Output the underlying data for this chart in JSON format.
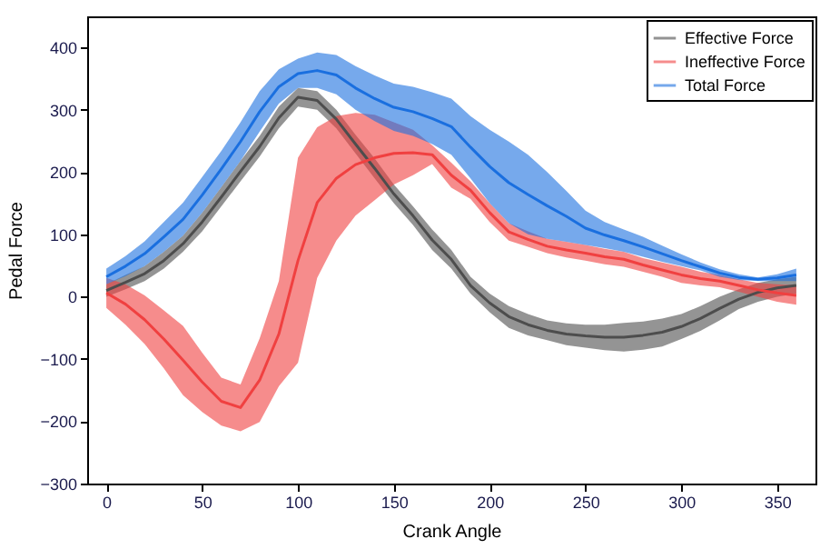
{
  "chart_data": {
    "type": "line",
    "xlabel": "Crank Angle",
    "ylabel": "Pedal Force",
    "x": [
      0,
      10,
      20,
      30,
      40,
      50,
      60,
      70,
      80,
      90,
      100,
      110,
      120,
      130,
      140,
      150,
      160,
      170,
      180,
      190,
      200,
      210,
      220,
      230,
      240,
      250,
      260,
      270,
      280,
      290,
      300,
      310,
      320,
      330,
      340,
      350,
      360
    ],
    "series": [
      {
        "name": "Effective Force",
        "color": "#4d4d4d",
        "values": [
          10,
          23,
          37,
          58,
          85,
          120,
          160,
          201,
          241,
          287,
          320,
          315,
          285,
          245,
          206,
          165,
          130,
          91,
          60,
          18,
          -10,
          -32,
          -45,
          -54,
          -60,
          -63,
          -65,
          -65,
          -62,
          -57,
          -48,
          -35,
          -19,
          -4,
          7,
          14,
          18
        ],
        "lower": [
          0,
          12,
          25,
          45,
          72,
          105,
          145,
          185,
          225,
          270,
          305,
          300,
          270,
          230,
          190,
          150,
          115,
          75,
          45,
          5,
          -25,
          -50,
          -62,
          -70,
          -78,
          -82,
          -86,
          -88,
          -85,
          -80,
          -68,
          -55,
          -38,
          -20,
          -8,
          0,
          5
        ],
        "upper": [
          20,
          35,
          49,
          72,
          98,
          135,
          176,
          218,
          258,
          305,
          335,
          330,
          300,
          260,
          222,
          180,
          145,
          108,
          75,
          32,
          5,
          -15,
          -28,
          -38,
          -43,
          -45,
          -45,
          -42,
          -40,
          -35,
          -28,
          -15,
          0,
          12,
          22,
          28,
          32
        ]
      },
      {
        "name": "Ineffective Force",
        "color": "#f04040",
        "values": [
          6,
          -12,
          -37,
          -68,
          -102,
          -137,
          -168,
          -178,
          -134,
          -60,
          58,
          151,
          190,
          212,
          223,
          230,
          231,
          228,
          195,
          171,
          135,
          104,
          92,
          81,
          75,
          70,
          64,
          60,
          51,
          43,
          35,
          29,
          25,
          18,
          11,
          6,
          2
        ],
        "lower": [
          -18,
          -45,
          -76,
          -115,
          -158,
          -185,
          -207,
          -216,
          -201,
          -144,
          -106,
          30,
          90,
          130,
          155,
          180,
          195,
          213,
          175,
          157,
          120,
          90,
          80,
          70,
          63,
          58,
          52,
          48,
          40,
          32,
          22,
          18,
          15,
          8,
          0,
          -8,
          -13
        ],
        "upper": [
          30,
          20,
          2,
          -22,
          -47,
          -90,
          -130,
          -141,
          -67,
          25,
          223,
          272,
          290,
          295,
          292,
          280,
          268,
          243,
          215,
          185,
          150,
          118,
          105,
          93,
          88,
          83,
          77,
          72,
          62,
          55,
          48,
          40,
          35,
          28,
          22,
          20,
          18
        ]
      },
      {
        "name": "Total Force",
        "color": "#1a6fdf",
        "values": [
          32,
          49,
          69,
          96,
          124,
          163,
          205,
          249,
          297,
          337,
          358,
          363,
          356,
          335,
          318,
          304,
          297,
          286,
          273,
          240,
          209,
          183,
          164,
          146,
          129,
          110,
          99,
          90,
          80,
          69,
          58,
          48,
          38,
          31,
          28,
          30,
          35
        ],
        "lower": [
          20,
          33,
          49,
          72,
          98,
          135,
          176,
          218,
          265,
          310,
          335,
          335,
          325,
          300,
          282,
          266,
          258,
          245,
          228,
          190,
          150,
          118,
          100,
          93,
          88,
          83,
          78,
          72,
          64,
          56,
          49,
          42,
          32,
          27,
          25,
          25,
          25
        ],
        "upper": [
          45,
          65,
          89,
          120,
          151,
          192,
          234,
          280,
          330,
          365,
          382,
          392,
          388,
          370,
          355,
          342,
          337,
          328,
          318,
          290,
          268,
          249,
          228,
          200,
          170,
          138,
          120,
          108,
          96,
          82,
          68,
          55,
          44,
          36,
          31,
          36,
          45
        ]
      }
    ],
    "xlim": [
      -10,
      370
    ],
    "ylim": [
      -300,
      450
    ],
    "xticks": [
      0,
      50,
      100,
      150,
      200,
      250,
      300,
      350
    ],
    "yticks": [
      -300,
      -200,
      -100,
      0,
      100,
      200,
      300,
      400
    ],
    "grid": false,
    "legend": "top right",
    "marker": "none",
    "line_style": "solid"
  }
}
